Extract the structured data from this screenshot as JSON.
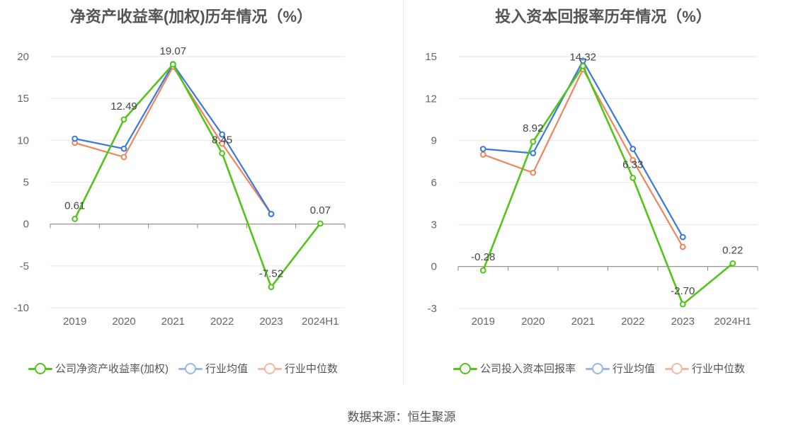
{
  "chart_data": [
    {
      "type": "line",
      "title": "净资产收益率(加权)历年情况（%）",
      "categories": [
        "2019",
        "2020",
        "2021",
        "2022",
        "2023",
        "2024H1"
      ],
      "ylim": [
        -10,
        20
      ],
      "yticks": [
        20,
        15,
        10,
        5,
        0,
        -5,
        -10
      ],
      "series": [
        {
          "name": "公司净资产收益率(加权)",
          "color": "#52c41a",
          "values": [
            0.61,
            12.49,
            19.07,
            8.45,
            -7.52,
            0.07
          ],
          "labels": [
            "0.61",
            "12.49",
            "19.07",
            "8.45",
            "-7.52",
            "0.07"
          ]
        },
        {
          "name": "行业均值",
          "color": "#3a78e0",
          "values": [
            10.2,
            9.0,
            19.1,
            10.7,
            1.2,
            null
          ]
        },
        {
          "name": "行业中位数",
          "color": "#f0845a",
          "values": [
            9.7,
            8.0,
            18.8,
            9.6,
            1.2,
            null
          ]
        }
      ]
    },
    {
      "type": "line",
      "title": "投入资本回报率历年情况（%）",
      "categories": [
        "2019",
        "2020",
        "2021",
        "2022",
        "2023",
        "2024H1"
      ],
      "ylim": [
        -3,
        15
      ],
      "yticks": [
        15,
        12,
        9,
        6,
        3,
        0,
        -3
      ],
      "series": [
        {
          "name": "公司投入资本回报率",
          "color": "#52c41a",
          "values": [
            -0.28,
            8.92,
            14.32,
            6.33,
            -2.7,
            0.22
          ],
          "labels": [
            "-0.28",
            "8.92",
            "14.32",
            "6.33",
            "-2.70",
            "0.22"
          ]
        },
        {
          "name": "行业均值",
          "color": "#3a78e0",
          "values": [
            8.4,
            8.1,
            14.7,
            8.4,
            2.1,
            null
          ]
        },
        {
          "name": "行业中位数",
          "color": "#f0845a",
          "values": [
            8.0,
            6.7,
            14.1,
            7.6,
            1.4,
            null
          ]
        }
      ]
    }
  ],
  "source": "数据来源：恒生聚源"
}
